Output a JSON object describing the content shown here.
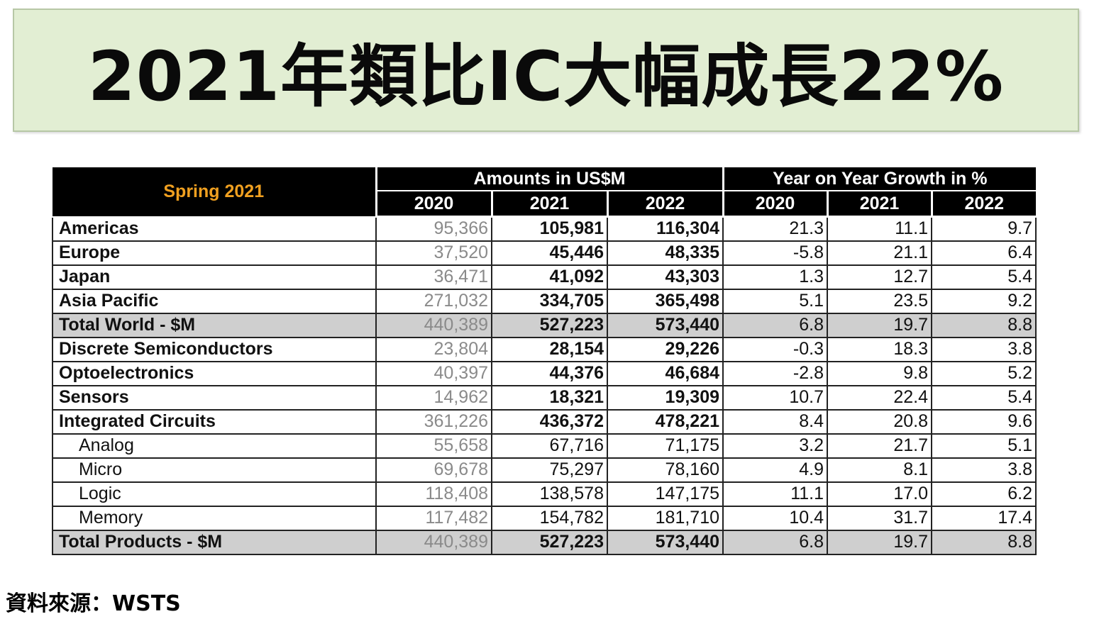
{
  "title": "2021年類比IC大幅成長22%",
  "table": {
    "corner_label": "Spring 2021",
    "group_amounts": "Amounts in US$M",
    "group_growth": "Year on Year Growth in %",
    "years": [
      "2020",
      "2021",
      "2022"
    ],
    "rows": [
      {
        "label": "Americas",
        "amounts": [
          "95,366",
          "105,981",
          "116,304"
        ],
        "growth": [
          "21.3",
          "11.1",
          "9.7"
        ]
      },
      {
        "label": "Europe",
        "amounts": [
          "37,520",
          "45,446",
          "48,335"
        ],
        "growth": [
          "-5.8",
          "21.1",
          "6.4"
        ]
      },
      {
        "label": "Japan",
        "amounts": [
          "36,471",
          "41,092",
          "43,303"
        ],
        "growth": [
          "1.3",
          "12.7",
          "5.4"
        ]
      },
      {
        "label": "Asia Pacific",
        "amounts": [
          "271,032",
          "334,705",
          "365,498"
        ],
        "growth": [
          "5.1",
          "23.5",
          "9.2"
        ]
      },
      {
        "label": "Total World - $M",
        "amounts": [
          "440,389",
          "527,223",
          "573,440"
        ],
        "growth": [
          "6.8",
          "19.7",
          "8.8"
        ]
      },
      {
        "label": "Discrete Semiconductors",
        "amounts": [
          "23,804",
          "28,154",
          "29,226"
        ],
        "growth": [
          "-0.3",
          "18.3",
          "3.8"
        ]
      },
      {
        "label": "Optoelectronics",
        "amounts": [
          "40,397",
          "44,376",
          "46,684"
        ],
        "growth": [
          "-2.8",
          "9.8",
          "5.2"
        ]
      },
      {
        "label": "Sensors",
        "amounts": [
          "14,962",
          "18,321",
          "19,309"
        ],
        "growth": [
          "10.7",
          "22.4",
          "5.4"
        ]
      },
      {
        "label": "Integrated Circuits",
        "amounts": [
          "361,226",
          "436,372",
          "478,221"
        ],
        "growth": [
          "8.4",
          "20.8",
          "9.6"
        ]
      },
      {
        "label": "Analog",
        "amounts": [
          "55,658",
          "67,716",
          "71,175"
        ],
        "growth": [
          "3.2",
          "21.7",
          "5.1"
        ]
      },
      {
        "label": "Micro",
        "amounts": [
          "69,678",
          "75,297",
          "78,160"
        ],
        "growth": [
          "4.9",
          "8.1",
          "3.8"
        ]
      },
      {
        "label": "Logic",
        "amounts": [
          "118,408",
          "138,578",
          "147,175"
        ],
        "growth": [
          "11.1",
          "17.0",
          "6.2"
        ]
      },
      {
        "label": "Memory",
        "amounts": [
          "117,482",
          "154,782",
          "181,710"
        ],
        "growth": [
          "10.4",
          "31.7",
          "17.4"
        ]
      },
      {
        "label": "Total Products - $M",
        "amounts": [
          "440,389",
          "527,223",
          "573,440"
        ],
        "growth": [
          "6.8",
          "19.7",
          "8.8"
        ]
      }
    ]
  },
  "source": "資料來源：WSTS",
  "colors": {
    "banner_bg": "#e2eed3",
    "header_bg": "#000000",
    "corner_label": "#f0a020",
    "total_row_bg": "#cfcfcf",
    "prev_year_text": "#8a8a8a"
  }
}
